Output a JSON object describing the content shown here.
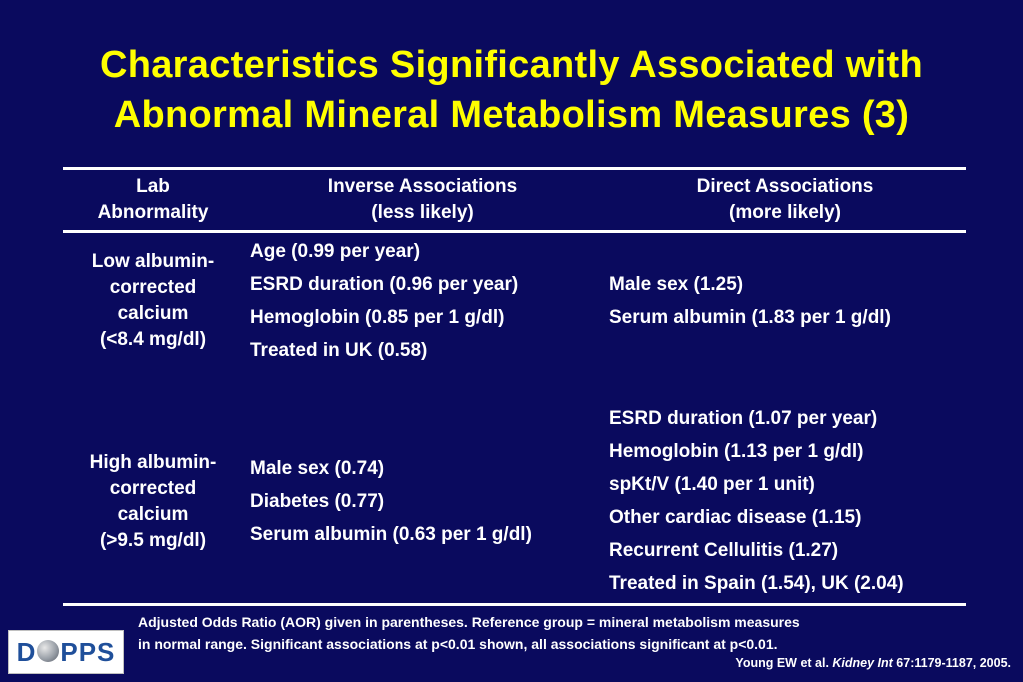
{
  "title": {
    "line1": "Characteristics Significantly Associated with",
    "line2": "Abnormal Mineral Metabolism Measures (3)"
  },
  "table": {
    "headers": {
      "lab": [
        "Lab",
        "Abnormality"
      ],
      "inverse": [
        "Inverse Associations",
        "(less likely)"
      ],
      "direct": [
        "Direct Associations",
        "(more likely)"
      ]
    },
    "rows": [
      {
        "lab": [
          "Low albumin-",
          "corrected",
          "calcium",
          "(<8.4 mg/dl)"
        ],
        "inverse": [
          "Age (0.99 per year)",
          "ESRD duration (0.96 per year)",
          "Hemoglobin (0.85 per 1 g/dl)",
          "Treated in UK (0.58)"
        ],
        "direct": [
          "Male sex (1.25)",
          "Serum albumin (1.83 per 1 g/dl)"
        ]
      },
      {
        "lab": [
          "High albumin-",
          "corrected",
          "calcium",
          "(>9.5 mg/dl)"
        ],
        "inverse": [
          "Male sex (0.74)",
          "Diabetes (0.77)",
          "Serum albumin (0.63 per 1 g/dl)"
        ],
        "direct": [
          "ESRD duration (1.07 per year)",
          "Hemoglobin (1.13 per 1 g/dl)",
          "spKt/V (1.40 per 1 unit)",
          "Other cardiac disease (1.15)",
          "Recurrent Cellulitis (1.27)",
          "Treated in Spain (1.54), UK (2.04)"
        ]
      }
    ]
  },
  "footnote": {
    "line1": "Adjusted Odds Ratio (AOR) given in parentheses.  Reference group = mineral metabolism measures",
    "line2": "in normal range.  Significant associations at p<0.01 shown, all associations significant at p<0.01."
  },
  "citation": {
    "authors": "Young EW et al. ",
    "journal": "Kidney Int",
    "ref": " 67:1179-1187, 2005."
  },
  "logo": {
    "prefix": "D",
    "suffix": "PPS"
  },
  "colors": {
    "background": "#0a0a5e",
    "title": "#ffff00",
    "text": "#ffffff",
    "logo_text": "#1f4f9a"
  }
}
